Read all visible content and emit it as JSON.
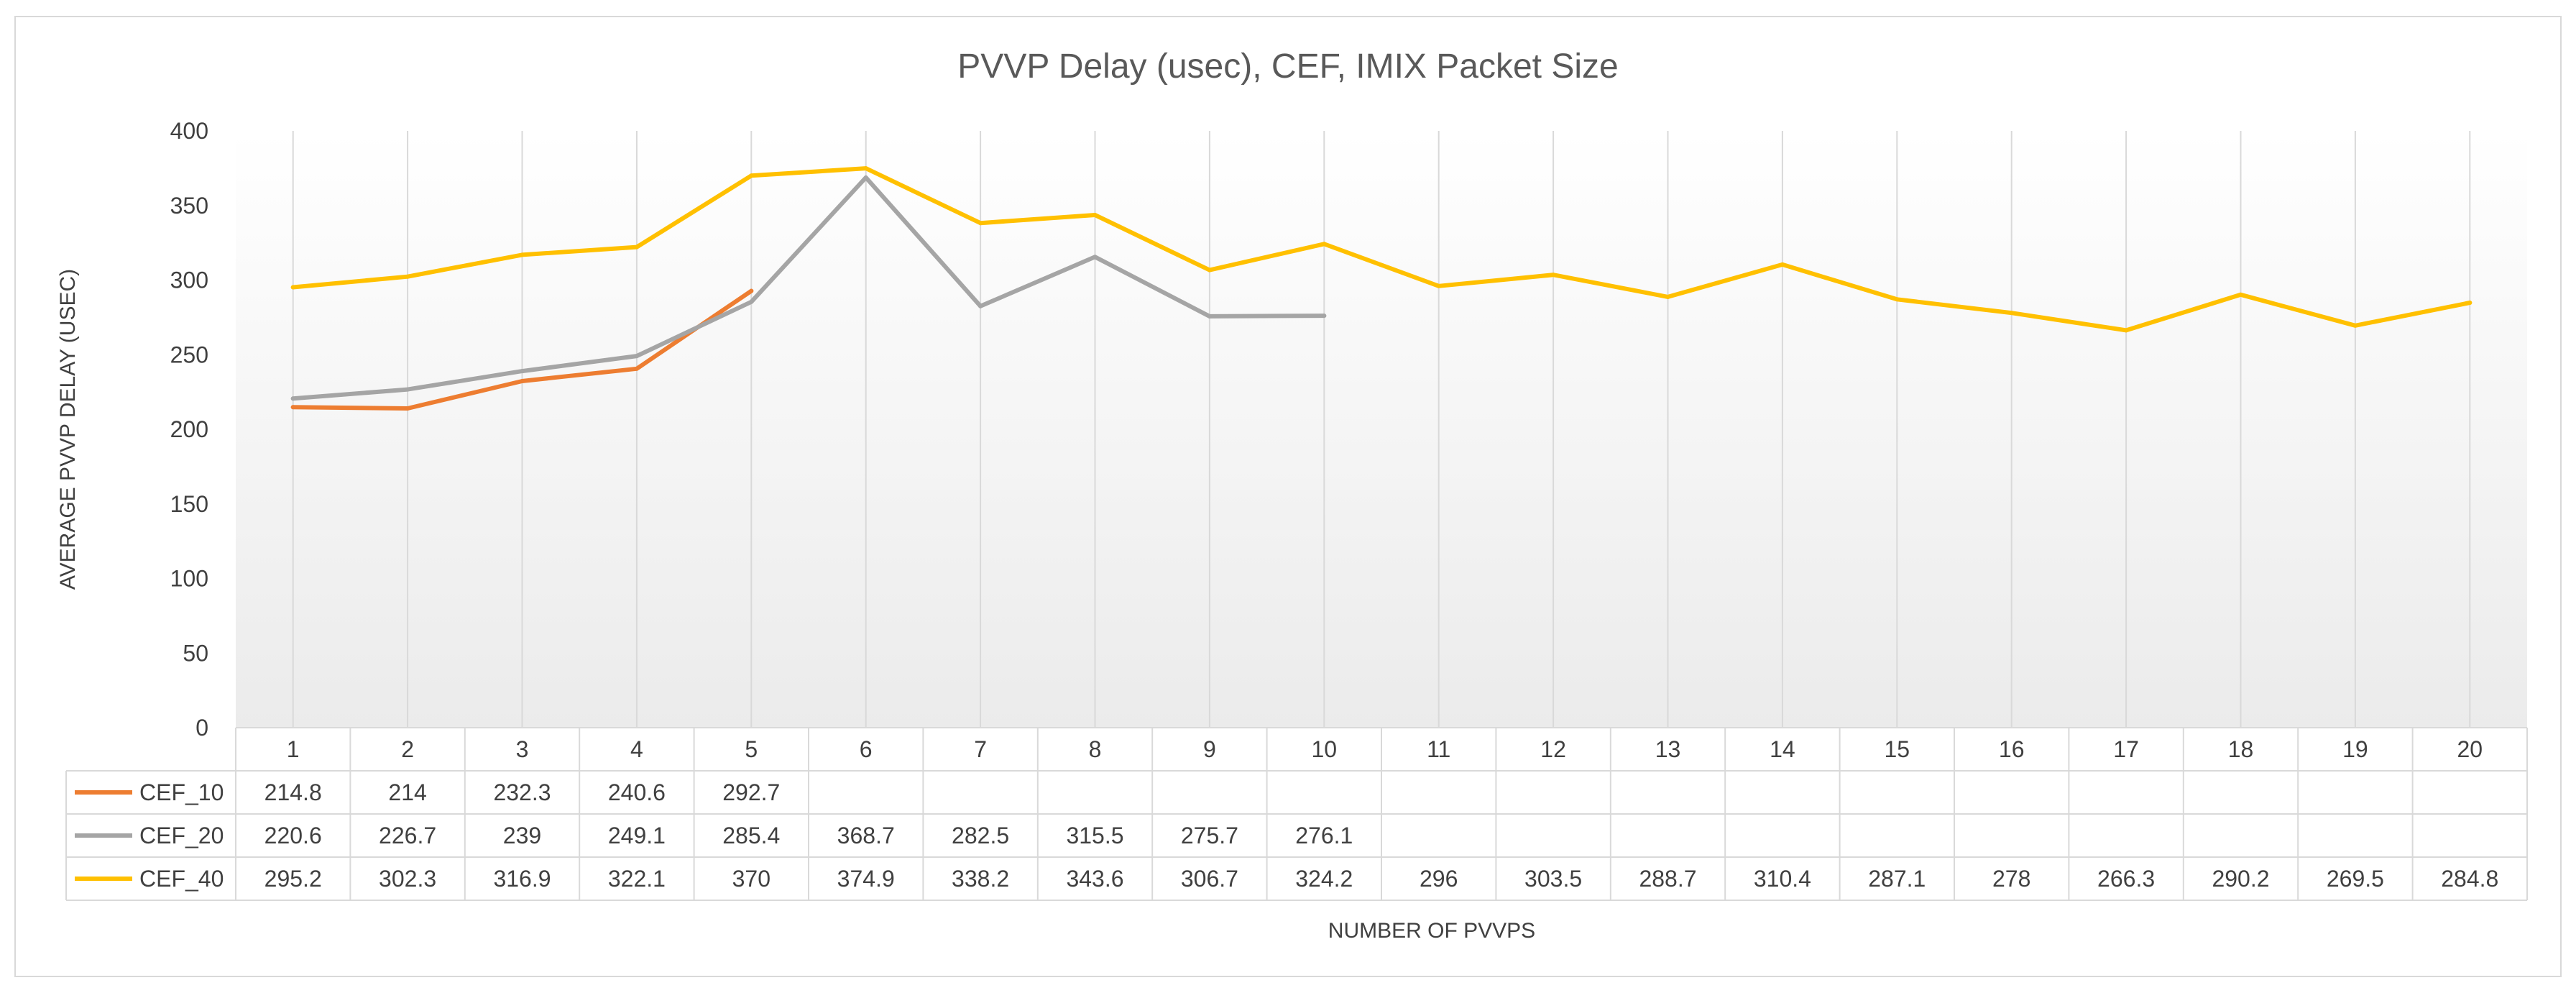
{
  "chart_data": {
    "type": "line",
    "title": "PVVP Delay (usec), CEF, IMIX Packet Size",
    "xlabel": "NUMBER OF PVVPS",
    "ylabel": "AVERAGE PVVP DELAY (USEC)",
    "ylim": [
      0,
      400
    ],
    "yticks": [
      0,
      50,
      100,
      150,
      200,
      250,
      300,
      350,
      400
    ],
    "categories": [
      "1",
      "2",
      "3",
      "4",
      "5",
      "6",
      "7",
      "8",
      "9",
      "10",
      "11",
      "12",
      "13",
      "14",
      "15",
      "16",
      "17",
      "18",
      "19",
      "20"
    ],
    "grid": "vertical",
    "data_table": true,
    "series": [
      {
        "name": "CEF_10",
        "color": "#ED7D31",
        "values": [
          214.8,
          214,
          232.3,
          240.6,
          292.7,
          null,
          null,
          null,
          null,
          null,
          null,
          null,
          null,
          null,
          null,
          null,
          null,
          null,
          null,
          null
        ]
      },
      {
        "name": "CEF_20",
        "color": "#A5A5A5",
        "values": [
          220.6,
          226.7,
          239,
          249.1,
          285.4,
          368.7,
          282.5,
          315.5,
          275.7,
          276.1,
          null,
          null,
          null,
          null,
          null,
          null,
          null,
          null,
          null,
          null
        ]
      },
      {
        "name": "CEF_40",
        "color": "#FFC000",
        "values": [
          295.2,
          302.3,
          316.9,
          322.1,
          370,
          374.9,
          338.2,
          343.6,
          306.7,
          324.2,
          296,
          303.5,
          288.7,
          310.4,
          287.1,
          278,
          266.3,
          290.2,
          269.5,
          284.8
        ]
      }
    ]
  }
}
